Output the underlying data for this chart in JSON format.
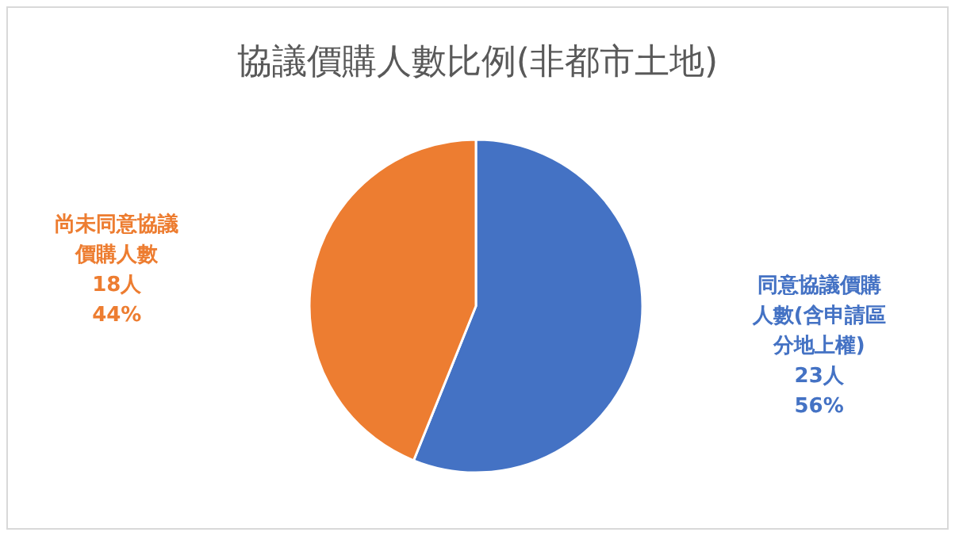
{
  "chart_data": {
    "type": "pie",
    "title": "協議價購人數比例(非都市土地)",
    "categories": [
      "同意協議價購人數(含申請區分地上權)",
      "尚未同意協議價購人數"
    ],
    "values": [
      23,
      18
    ],
    "colors": [
      "#4472c4",
      "#ed7d31"
    ],
    "value_labels": [
      "23人\n56%",
      "18人\n44%"
    ]
  }
}
